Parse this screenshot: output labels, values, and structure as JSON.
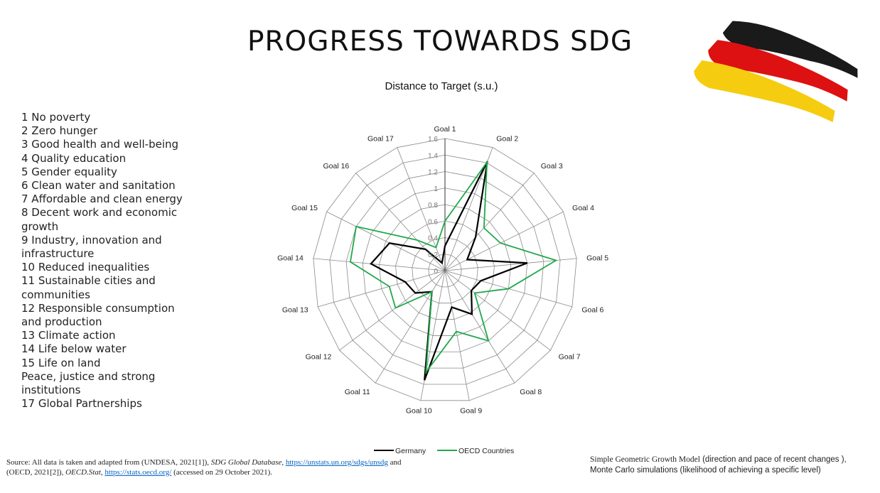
{
  "slide": {
    "title": "PROGRESS TOWARDS SDG"
  },
  "goal_list": [
    "1 No poverty",
    "2 Zero hunger",
    "3 Good health and well-being",
    "4 Quality education",
    "5 Gender equality",
    "6 Clean water and sanitation",
    "7 Affordable and clean energy",
    "8 Decent work and economic growth",
    "9 Industry, innovation and infrastructure",
    "10 Reduced inequalities",
    "11 Sustainable cities and communities",
    "12 Responsible consumption and production",
    "13 Climate action",
    "14 Life below water",
    "15 Life on land",
    "Peace, justice and strong institutions",
    "17 Global Partnerships"
  ],
  "source": {
    "prefix": "Source: All data is taken and adapted from (UNDESA, 2021[1]), ",
    "db1": "SDG Global Database",
    "sep1": ", ",
    "link1": "https://unstats.un.org/sdgs/unsdg",
    "mid": " and (OECD, 2021[2]), ",
    "db2": "OECD.Stat",
    "sep2": ", ",
    "link2": "https://stats.oecd.org/",
    "suffix": " (accessed on 29 October 2021)."
  },
  "model_note": {
    "model_name": "Simple Geometric Growth Model",
    "model_desc": " (direction and pace of recent changes ),",
    "sim_name": "Monte Carlo simulations",
    "sim_desc": " (likelihood of achieving a specific level)"
  },
  "flag": {
    "colors": [
      "#1a1a1a",
      "#dd1111",
      "#f5cc10"
    ]
  },
  "chart_data": {
    "type": "radar",
    "title": "Distance to Target (s.u.)",
    "categories": [
      "Goal 1",
      "Goal 2",
      "Goal 3",
      "Goal 4",
      "Goal 5",
      "Goal 6",
      "Goal 7",
      "Goal 8",
      "Goal 9",
      "Goal 10",
      "Goal 11",
      "Goal 12",
      "Goal 13",
      "Goal 14",
      "Goal 15",
      "Goal 16",
      "Goal 17"
    ],
    "rmin": 0,
    "rmax": 1.6,
    "ticks": [
      0,
      0.2,
      0.4,
      0.6,
      0.8,
      1,
      1.2,
      1.4,
      1.6
    ],
    "grid": true,
    "legend_position": "bottom",
    "series": [
      {
        "name": "Germany",
        "color": "#000000",
        "values": [
          0.3,
          1.42,
          0.55,
          0.3,
          1.0,
          0.45,
          0.4,
          0.62,
          0.45,
          1.35,
          0.3,
          0.45,
          0.5,
          0.9,
          0.75,
          0.35,
          0.1
        ]
      },
      {
        "name": "OECD Countries",
        "color": "#1fa84a",
        "values": [
          0.6,
          1.41,
          0.7,
          0.75,
          1.35,
          0.8,
          0.45,
          1.0,
          0.75,
          1.25,
          0.3,
          0.75,
          0.7,
          1.15,
          1.2,
          0.5,
          0.3
        ]
      }
    ]
  }
}
